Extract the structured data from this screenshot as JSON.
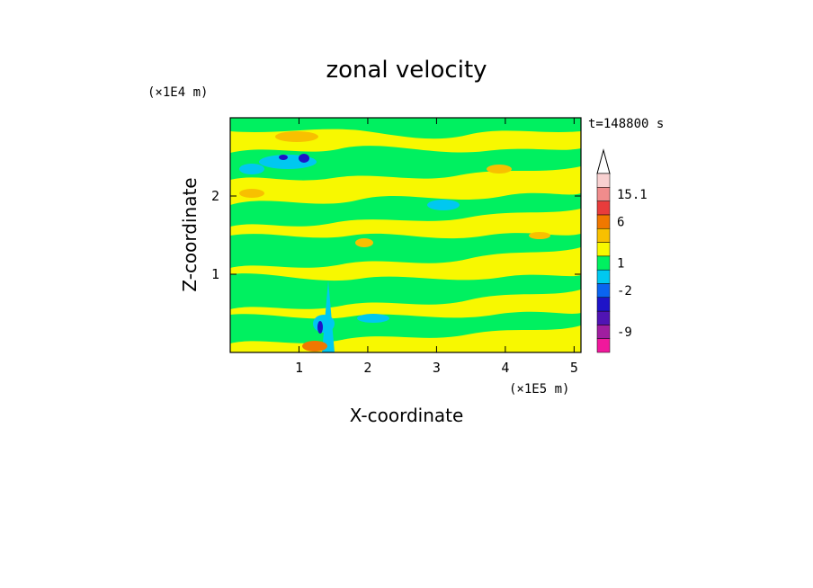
{
  "chart_data": {
    "type": "heatmap",
    "title": "zonal velocity",
    "xlabel": "X-coordinate",
    "ylabel": "Z-coordinate",
    "x_unit": "(×1E5 m)",
    "y_unit": "(×1E4 m)",
    "time_label": "t=148800 s",
    "xlim": [
      0,
      5.1
    ],
    "ylim": [
      0,
      3.0
    ],
    "x_ticks": [
      {
        "value": 1,
        "label": "1"
      },
      {
        "value": 2,
        "label": "2"
      },
      {
        "value": 3,
        "label": "3"
      },
      {
        "value": 4,
        "label": "4"
      },
      {
        "value": 5,
        "label": "5"
      }
    ],
    "y_ticks": [
      {
        "value": 1,
        "label": "1"
      },
      {
        "value": 2,
        "label": "2"
      }
    ],
    "colorbar": {
      "levels": [
        {
          "color": "#f0189c",
          "label": ""
        },
        {
          "color": "#a01ea0",
          "label": "-9"
        },
        {
          "color": "#5014b4",
          "label": ""
        },
        {
          "color": "#1e14c8",
          "label": ""
        },
        {
          "color": "#0a64f0",
          "label": "-2"
        },
        {
          "color": "#00c8f0",
          "label": ""
        },
        {
          "color": "#00f060",
          "label": "1"
        },
        {
          "color": "#f8f800",
          "label": ""
        },
        {
          "color": "#f8c000",
          "label": ""
        },
        {
          "color": "#f07800",
          "label": "6"
        },
        {
          "color": "#e83c3c",
          "label": ""
        },
        {
          "color": "#f08c8c",
          "label": "15.1"
        },
        {
          "color": "#f8d0d0",
          "label": ""
        }
      ],
      "top_label": "15.1"
    },
    "field_colors": {
      "green": "#00f060",
      "yellow": "#f8f800",
      "orange": "#f8c000",
      "cyan": "#00c8f0",
      "blue": "#1e14c8"
    }
  }
}
